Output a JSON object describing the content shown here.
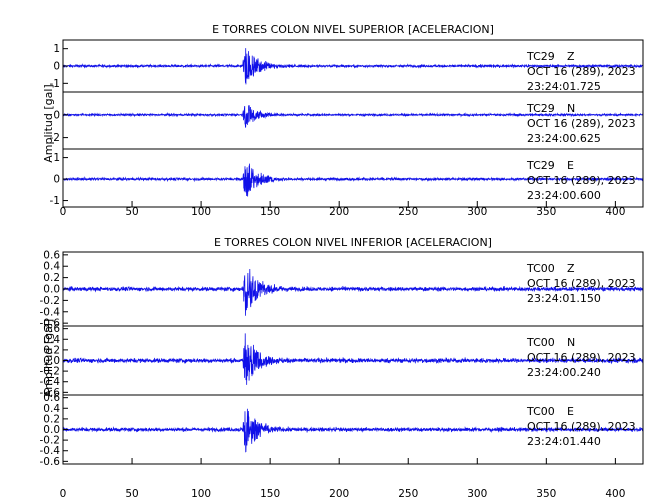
{
  "chart_data": [
    {
      "type": "line",
      "title": "E TORRES COLON NIVEL SUPERIOR [ACELERACION]",
      "ylabel": "Amplitud [gal]",
      "xlim": [
        0,
        420
      ],
      "x_ticks": [
        "0",
        "50",
        "100",
        "150",
        "200",
        "250",
        "300",
        "350",
        "400"
      ],
      "event_onset_s": 130,
      "series": [
        {
          "name": "TC29 Z",
          "station": "TC29",
          "component": "Z",
          "date": "OCT 16 (289), 2023",
          "time": "23:24:01.725",
          "ylim": [
            -1.5,
            1.5
          ],
          "y_ticks": [
            "1",
            "0",
            "-1"
          ],
          "noise_amplitude": 0.12,
          "peak_amplitude": 1.5
        },
        {
          "name": "TC29 N",
          "station": "TC29",
          "component": "N",
          "date": "OCT 16 (289), 2023",
          "time": "23:24:00.625",
          "ylim": [
            -3,
            2
          ],
          "y_ticks": [
            "0",
            "-2"
          ],
          "noise_amplitude": 0.15,
          "peak_amplitude": 1.5
        },
        {
          "name": "TC29 E",
          "station": "TC29",
          "component": "E",
          "date": "OCT 16 (289), 2023",
          "time": "23:24:00.600",
          "ylim": [
            -1.3,
            1.4
          ],
          "y_ticks": [
            "1",
            "0",
            "-1"
          ],
          "noise_amplitude": 0.1,
          "peak_amplitude": 1.2
        }
      ]
    },
    {
      "type": "line",
      "title": "E TORRES COLON NIVEL INFERIOR [ACELERACION]",
      "ylabel": "Amplitud [gal]",
      "xlim": [
        0,
        420
      ],
      "x_ticks": [
        "0",
        "50",
        "100",
        "150",
        "200",
        "250",
        "300",
        "350",
        "400"
      ],
      "event_onset_s": 130,
      "series": [
        {
          "name": "TC00 Z",
          "station": "TC00",
          "component": "Z",
          "date": "OCT 16 (289), 2023",
          "time": "23:24:01.150",
          "ylim": [
            -0.65,
            0.65
          ],
          "y_ticks": [
            "0.6",
            "0.4",
            "0.2",
            "0.0",
            "-0.2",
            "-0.4",
            "-0.6"
          ],
          "noise_amplitude": 0.06,
          "peak_amplitude": 0.65
        },
        {
          "name": "TC00 N",
          "station": "TC00",
          "component": "N",
          "date": "OCT 16 (289), 2023",
          "time": "23:24:00.240",
          "ylim": [
            -0.65,
            0.65
          ],
          "y_ticks": [
            "0.6",
            "0.4",
            "0.2",
            "0.0",
            "-0.2",
            "-0.4",
            "-0.6"
          ],
          "noise_amplitude": 0.07,
          "peak_amplitude": 0.65
        },
        {
          "name": "TC00 E",
          "station": "TC00",
          "component": "E",
          "date": "OCT 16 (289), 2023",
          "time": "23:24:01.440",
          "ylim": [
            -0.65,
            0.65
          ],
          "y_ticks": [
            "0.6",
            "0.4",
            "0.2",
            "0.0",
            "-0.2",
            "-0.4",
            "-0.6"
          ],
          "noise_amplitude": 0.06,
          "peak_amplitude": 0.6
        }
      ]
    }
  ],
  "colors": {
    "trace": "#1010e8",
    "axes": "#000000",
    "background": "#ffffff"
  }
}
